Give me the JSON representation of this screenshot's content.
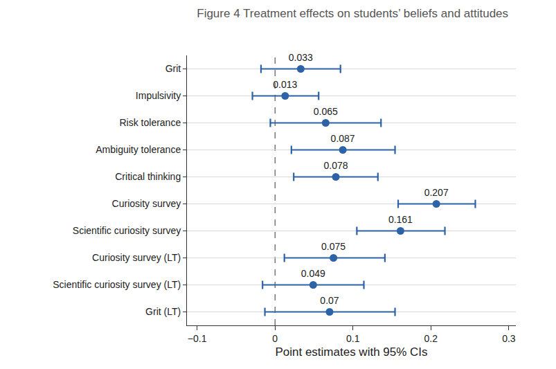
{
  "chart_data": {
    "type": "coefficient",
    "title": "Figure 4 Treatment effects on students’ beliefs and attitudes",
    "x_label": "Point estimates with 95% CIs",
    "orientation": "horizontal",
    "categories": [
      "Grit",
      "Impulsivity",
      "Risk tolerance",
      "Ambiguity tolerance",
      "Critical thinking",
      "Curiosity survey",
      "Scientific curiosity survey",
      "Curiosity survey (LT)",
      "Scientific curiosity survey (LT)",
      "Grit (LT)"
    ],
    "values": [
      0.033,
      0.013,
      0.065,
      0.087,
      0.078,
      0.207,
      0.161,
      0.075,
      0.049,
      0.07
    ],
    "ci_low": [
      -0.018,
      -0.029,
      -0.006,
      0.021,
      0.024,
      0.158,
      0.105,
      0.012,
      -0.016,
      -0.013
    ],
    "ci_high": [
      0.084,
      0.056,
      0.136,
      0.154,
      0.132,
      0.257,
      0.218,
      0.141,
      0.114,
      0.154
    ],
    "color": "#2e62a6",
    "marker": "circle",
    "data_labels": true,
    "grid": true,
    "xlim": [
      -0.113,
      0.309
    ],
    "xticks": [
      {
        "value": -0.1,
        "label": "−0.1"
      },
      0,
      0.1,
      0.2,
      0.3
    ],
    "reference_line": {
      "x": 0,
      "line_style": "dashed"
    }
  }
}
